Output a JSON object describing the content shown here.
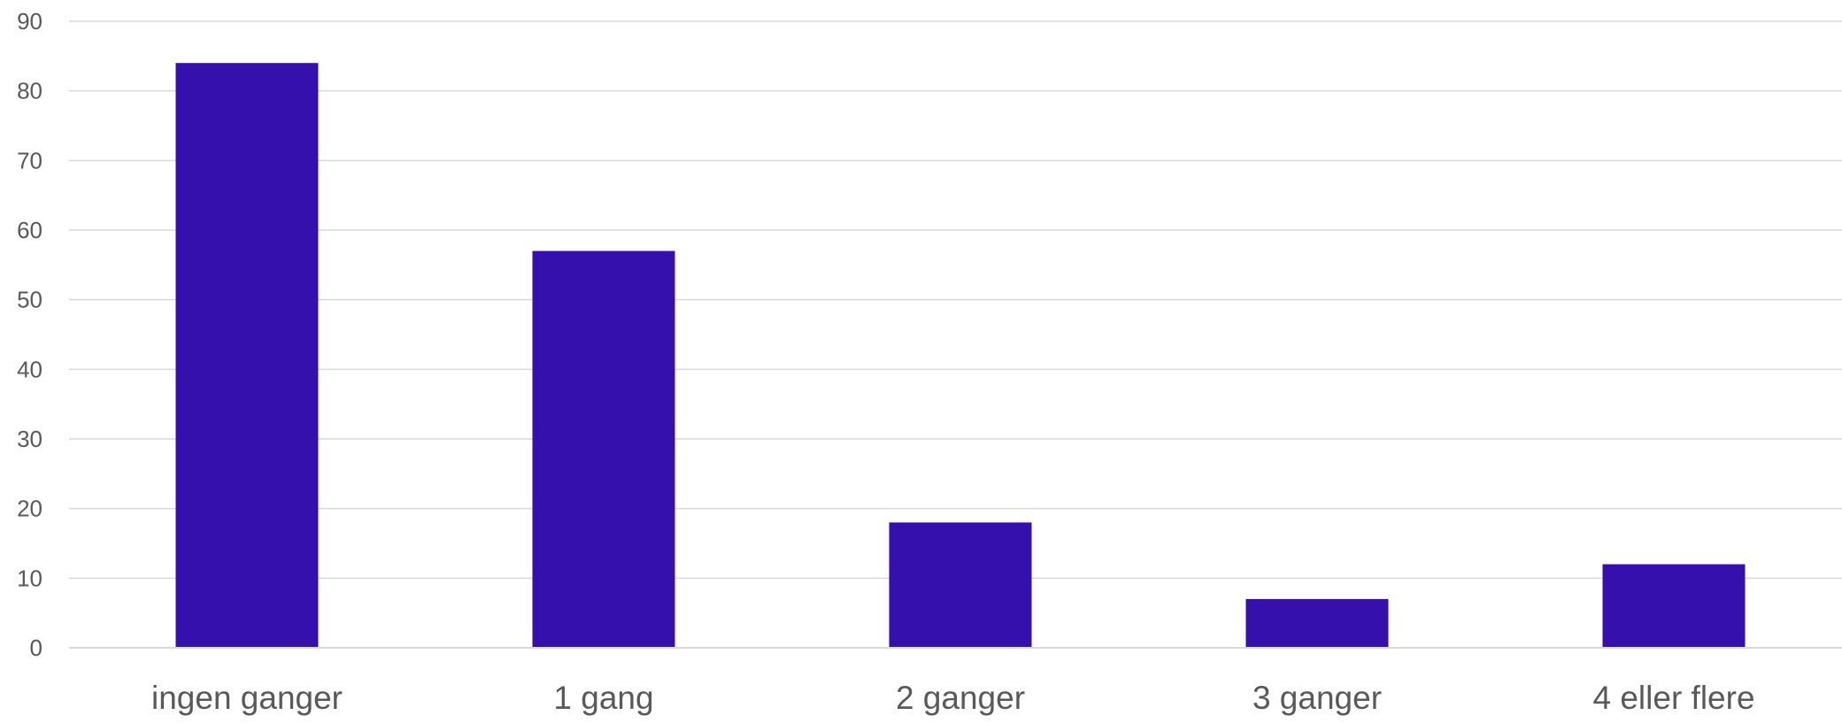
{
  "chart_data": {
    "type": "bar",
    "title": "",
    "xlabel": "",
    "ylabel": "",
    "categories": [
      "ingen ganger",
      "1 gang",
      "2 ganger",
      "3 ganger",
      "4 eller flere"
    ],
    "values": [
      84,
      57,
      18,
      7,
      12
    ],
    "ylim": [
      0,
      90
    ],
    "yticks": [
      0,
      10,
      20,
      30,
      40,
      50,
      60,
      70,
      80,
      90
    ],
    "grid": true,
    "legend": "none",
    "bar_color": "#3610ad",
    "grid_color": "#d9d9d9",
    "label_color": "#595959"
  }
}
